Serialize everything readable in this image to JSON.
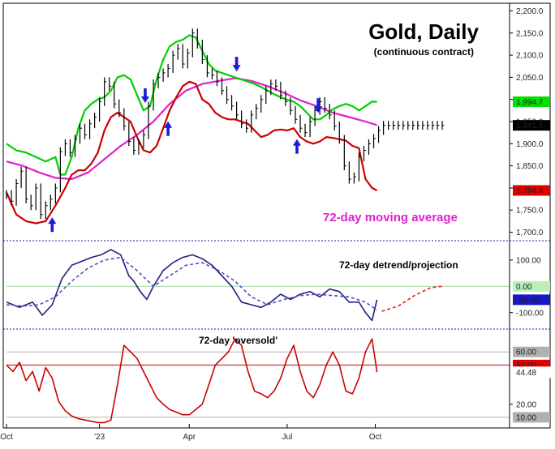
{
  "chart_data": [
    {
      "type": "line",
      "title": "Gold, Daily",
      "subtitle": "(continuous contract)",
      "annotation": "72-day moving average",
      "annotation_color": "#e020d0",
      "ylim": [
        1690,
        2210
      ],
      "y_ticks": [
        {
          "value": 2200,
          "label": "2,200.0"
        },
        {
          "value": 2150,
          "label": "2,150.0"
        },
        {
          "value": 2100,
          "label": "2,100.0"
        },
        {
          "value": 2050,
          "label": "2,050.0"
        },
        {
          "value": 2000,
          "label": "2,000.0"
        },
        {
          "value": 1950,
          "label": "1,950.0"
        },
        {
          "value": 1900,
          "label": "1,900.0"
        },
        {
          "value": 1850,
          "label": "1,850.0"
        },
        {
          "value": 1800,
          "label": "1,800.0"
        },
        {
          "value": 1750,
          "label": "1,750.0"
        },
        {
          "value": 1700,
          "label": "1,700.0"
        }
      ],
      "last_value_badges": [
        {
          "label": "1,994.7",
          "value": 1994.7,
          "color": "#00e000",
          "text_color": "#ffffff"
        },
        {
          "label": "1,941.5",
          "value": 1941.5,
          "color": "#000000",
          "text_color": "#ffffff"
        },
        {
          "label": "1,794.4",
          "value": 1794.4,
          "color": "#e00000",
          "text_color": "#ffffff"
        }
      ],
      "series": [
        {
          "role": "price",
          "color": "#000000",
          "x": [
            0,
            3,
            6,
            9,
            12,
            15,
            18,
            21,
            24,
            27,
            30,
            33,
            36,
            39,
            42,
            45,
            48,
            51,
            54,
            57,
            60,
            63,
            66,
            69,
            72,
            75,
            78,
            81,
            84,
            87,
            90,
            93,
            96,
            99,
            102,
            105,
            108,
            111,
            114,
            117,
            120,
            123,
            126,
            129,
            132,
            135,
            138,
            141,
            144,
            147,
            150,
            153,
            156,
            159,
            162,
            165,
            168,
            171,
            174,
            177,
            180,
            183,
            186,
            189,
            192,
            195,
            198,
            201,
            204,
            207,
            210,
            213,
            216,
            219,
            222,
            225,
            228,
            231,
            234,
            237,
            240,
            243,
            246,
            249,
            252,
            255,
            258,
            261,
            264,
            267
          ],
          "values": [
            1785,
            1770,
            1810,
            1838,
            1775,
            1760,
            1800,
            1740,
            1760,
            1775,
            1800,
            1882,
            1900,
            1880,
            1910,
            1935,
            1920,
            1945,
            1960,
            1995,
            2040,
            2030,
            1990,
            1970,
            1940,
            1905,
            1885,
            1900,
            1920,
            1985,
            2035,
            2050,
            2060,
            2070,
            2100,
            2115,
            2080,
            2105,
            2150,
            2125,
            2090,
            2060,
            2055,
            2040,
            2020,
            2000,
            1985,
            1965,
            1945,
            1935,
            1965,
            1980,
            2000,
            2020,
            2035,
            2030,
            2010,
            1995,
            1975,
            1955,
            1935,
            1925,
            1950,
            1975,
            1995,
            1980,
            1965,
            1940,
            1910,
            1850,
            1820,
            1825,
            1870,
            1885,
            1900,
            1912,
            1930,
            1941.5,
            1941.5,
            1941.5,
            1941.5,
            1941.5,
            1941.5,
            1941.5,
            1941.5,
            1941.5,
            1941.5,
            1941.5,
            1941.5,
            1941.5
          ]
        },
        {
          "role": "72-day moving average",
          "color": "#e020d0",
          "x": [
            0,
            10,
            20,
            30,
            40,
            50,
            60,
            70,
            80,
            90,
            100,
            110,
            120,
            130,
            140,
            150,
            160,
            170,
            180,
            190,
            200,
            210,
            220,
            227
          ],
          "values": [
            1860,
            1850,
            1835,
            1823,
            1820,
            1835,
            1865,
            1895,
            1920,
            1950,
            1990,
            2020,
            2035,
            2042,
            2048,
            2042,
            2030,
            2015,
            1998,
            1985,
            1970,
            1960,
            1950,
            1942
          ]
        },
        {
          "role": "upper band",
          "color": "#00d000",
          "x": [
            0,
            6,
            12,
            18,
            24,
            30,
            33,
            36,
            40,
            44,
            48,
            52,
            56,
            60,
            64,
            68,
            72,
            76,
            80,
            84,
            88,
            92,
            96,
            100,
            104,
            108,
            112,
            116,
            120,
            124,
            128,
            132,
            136,
            140,
            144,
            148,
            152,
            156,
            160,
            164,
            168,
            172,
            176,
            180,
            184,
            188,
            192,
            196,
            200,
            204,
            208,
            212,
            216,
            220,
            224,
            227
          ],
          "values": [
            1900,
            1885,
            1880,
            1870,
            1860,
            1870,
            1830,
            1830,
            1870,
            1935,
            1975,
            1990,
            2000,
            2005,
            2020,
            2050,
            2055,
            2045,
            2010,
            1975,
            1985,
            2045,
            2090,
            2120,
            2130,
            2135,
            2145,
            2140,
            2110,
            2080,
            2065,
            2060,
            2055,
            2050,
            2045,
            2040,
            2035,
            2028,
            2020,
            2012,
            2005,
            1999,
            1995,
            1985,
            1970,
            1955,
            1955,
            1965,
            1978,
            1985,
            1990,
            1985,
            1975,
            1985,
            1995,
            1994.7
          ]
        },
        {
          "role": "lower band",
          "color": "#cc0000",
          "x": [
            0,
            6,
            12,
            18,
            24,
            30,
            36,
            40,
            44,
            48,
            52,
            56,
            60,
            64,
            68,
            72,
            76,
            80,
            84,
            88,
            92,
            96,
            100,
            104,
            108,
            112,
            116,
            120,
            124,
            128,
            132,
            136,
            140,
            144,
            148,
            152,
            156,
            160,
            164,
            168,
            172,
            176,
            180,
            184,
            188,
            192,
            196,
            200,
            204,
            208,
            212,
            216,
            220,
            224,
            227
          ],
          "values": [
            1790,
            1740,
            1725,
            1720,
            1725,
            1760,
            1800,
            1830,
            1840,
            1840,
            1855,
            1880,
            1930,
            1960,
            1970,
            1960,
            1950,
            1915,
            1885,
            1880,
            1895,
            1935,
            1975,
            2005,
            2030,
            2040,
            2035,
            2000,
            1990,
            1970,
            1960,
            1955,
            1955,
            1950,
            1945,
            1930,
            1915,
            1920,
            1930,
            1932,
            1930,
            1935,
            1915,
            1905,
            1900,
            1905,
            1915,
            1913,
            1910,
            1907,
            1895,
            1890,
            1820,
            1800,
            1794.4
          ]
        }
      ],
      "arrows_down_x": [
        85,
        141,
        191
      ],
      "arrows_up_x": [
        28,
        99,
        178
      ]
    },
    {
      "type": "line",
      "annotation": "72-day detrend/projection",
      "ylim": [
        -150,
        155
      ],
      "y_ticks": [
        {
          "value": 100,
          "label": "100.00"
        },
        {
          "value": -100,
          "label": "-100.00"
        }
      ],
      "reference_line": {
        "value": 0,
        "color": "#a0d8a0"
      },
      "last_value_badges": [
        {
          "label": "0.00",
          "value": 0,
          "color": "#b8f0b8",
          "text_color": "#ffffff"
        },
        {
          "label": "-50.95",
          "value": -50.95,
          "color": "#1818c8",
          "text_color": "#ffffff"
        }
      ],
      "series": [
        {
          "role": "detrend",
          "color": "#202080",
          "x": [
            0,
            8,
            16,
            22,
            28,
            34,
            40,
            46,
            52,
            58,
            64,
            70,
            75,
            78,
            82,
            86,
            90,
            96,
            102,
            108,
            114,
            120,
            126,
            132,
            138,
            144,
            150,
            156,
            162,
            168,
            174,
            180,
            186,
            192,
            198,
            204,
            210,
            216,
            220,
            224,
            227
          ],
          "values": [
            -60,
            -80,
            -60,
            -110,
            -70,
            30,
            80,
            95,
            110,
            120,
            140,
            120,
            40,
            20,
            -20,
            -50,
            0,
            60,
            90,
            110,
            120,
            105,
            80,
            40,
            0,
            -60,
            -70,
            -80,
            -60,
            -30,
            -50,
            -30,
            -20,
            -40,
            -10,
            -20,
            -60,
            -60,
            -100,
            -130,
            -50.95
          ]
        },
        {
          "role": "smoothed",
          "color": "#5050c0",
          "dashed": true,
          "x": [
            0,
            10,
            20,
            30,
            40,
            50,
            60,
            70,
            80,
            90,
            100,
            110,
            120,
            130,
            140,
            150,
            160,
            170,
            180,
            190,
            200,
            210,
            220,
            227
          ],
          "values": [
            -70,
            -75,
            -70,
            -40,
            20,
            70,
            100,
            110,
            60,
            0,
            40,
            80,
            90,
            60,
            20,
            -40,
            -70,
            -50,
            -35,
            -30,
            -35,
            -40,
            -60,
            -90
          ]
        },
        {
          "role": "projection",
          "color": "#e02020",
          "dashed": true,
          "x": [
            230,
            240,
            250,
            260,
            267
          ],
          "values": [
            -95,
            -75,
            -35,
            -5,
            0
          ]
        }
      ]
    },
    {
      "type": "line",
      "annotation": "72-day 'oversold'",
      "ylim": [
        5,
        75
      ],
      "y_ticks": [
        {
          "value": 20,
          "label": "20.00"
        }
      ],
      "reference_line": {
        "value": 50,
        "color": "#cc0000"
      },
      "guide_lines": [
        {
          "value": 60,
          "color": "#b0b0b0"
        },
        {
          "value": 10,
          "color": "#b0b0b0"
        }
      ],
      "last_value_badges": [
        {
          "label": "60.00",
          "value": 60,
          "color": "#b0b0b0",
          "text_color": "#ffffff"
        },
        {
          "label": "50.00",
          "value": 50,
          "color": "#e00000",
          "text_color": "#ffffff"
        },
        {
          "label": "44.48",
          "value": 44.48,
          "color": "#ffffff",
          "text_color": "#000000"
        },
        {
          "label": "10.00",
          "value": 10,
          "color": "#b0b0b0",
          "text_color": "#ffffff"
        }
      ],
      "series": [
        {
          "role": "oversold",
          "color": "#cc0000",
          "x": [
            0,
            4,
            8,
            12,
            16,
            20,
            24,
            28,
            32,
            36,
            40,
            44,
            48,
            52,
            56,
            60,
            64,
            68,
            72,
            76,
            80,
            84,
            88,
            92,
            96,
            100,
            104,
            108,
            112,
            116,
            120,
            124,
            128,
            132,
            136,
            140,
            144,
            148,
            152,
            156,
            160,
            164,
            168,
            172,
            176,
            180,
            184,
            188,
            192,
            196,
            200,
            204,
            208,
            212,
            216,
            220,
            224,
            227
          ],
          "values": [
            50,
            45,
            52,
            38,
            45,
            30,
            48,
            40,
            22,
            15,
            11,
            9,
            8,
            7,
            6,
            6,
            8,
            35,
            65,
            60,
            55,
            45,
            35,
            25,
            20,
            16,
            14,
            12,
            12,
            16,
            20,
            35,
            50,
            55,
            60,
            70,
            65,
            45,
            30,
            28,
            25,
            30,
            40,
            55,
            65,
            45,
            30,
            25,
            35,
            50,
            60,
            50,
            30,
            28,
            40,
            60,
            70,
            44.48
          ]
        }
      ]
    }
  ],
  "x_axis": {
    "domain": [
      0,
      267
    ],
    "ticks": [
      {
        "x": 0,
        "label": "Oct"
      },
      {
        "x": 57,
        "label": "'23"
      },
      {
        "x": 112,
        "label": "Apr"
      },
      {
        "x": 172,
        "label": "Jul"
      },
      {
        "x": 226,
        "label": "Oct"
      }
    ]
  }
}
